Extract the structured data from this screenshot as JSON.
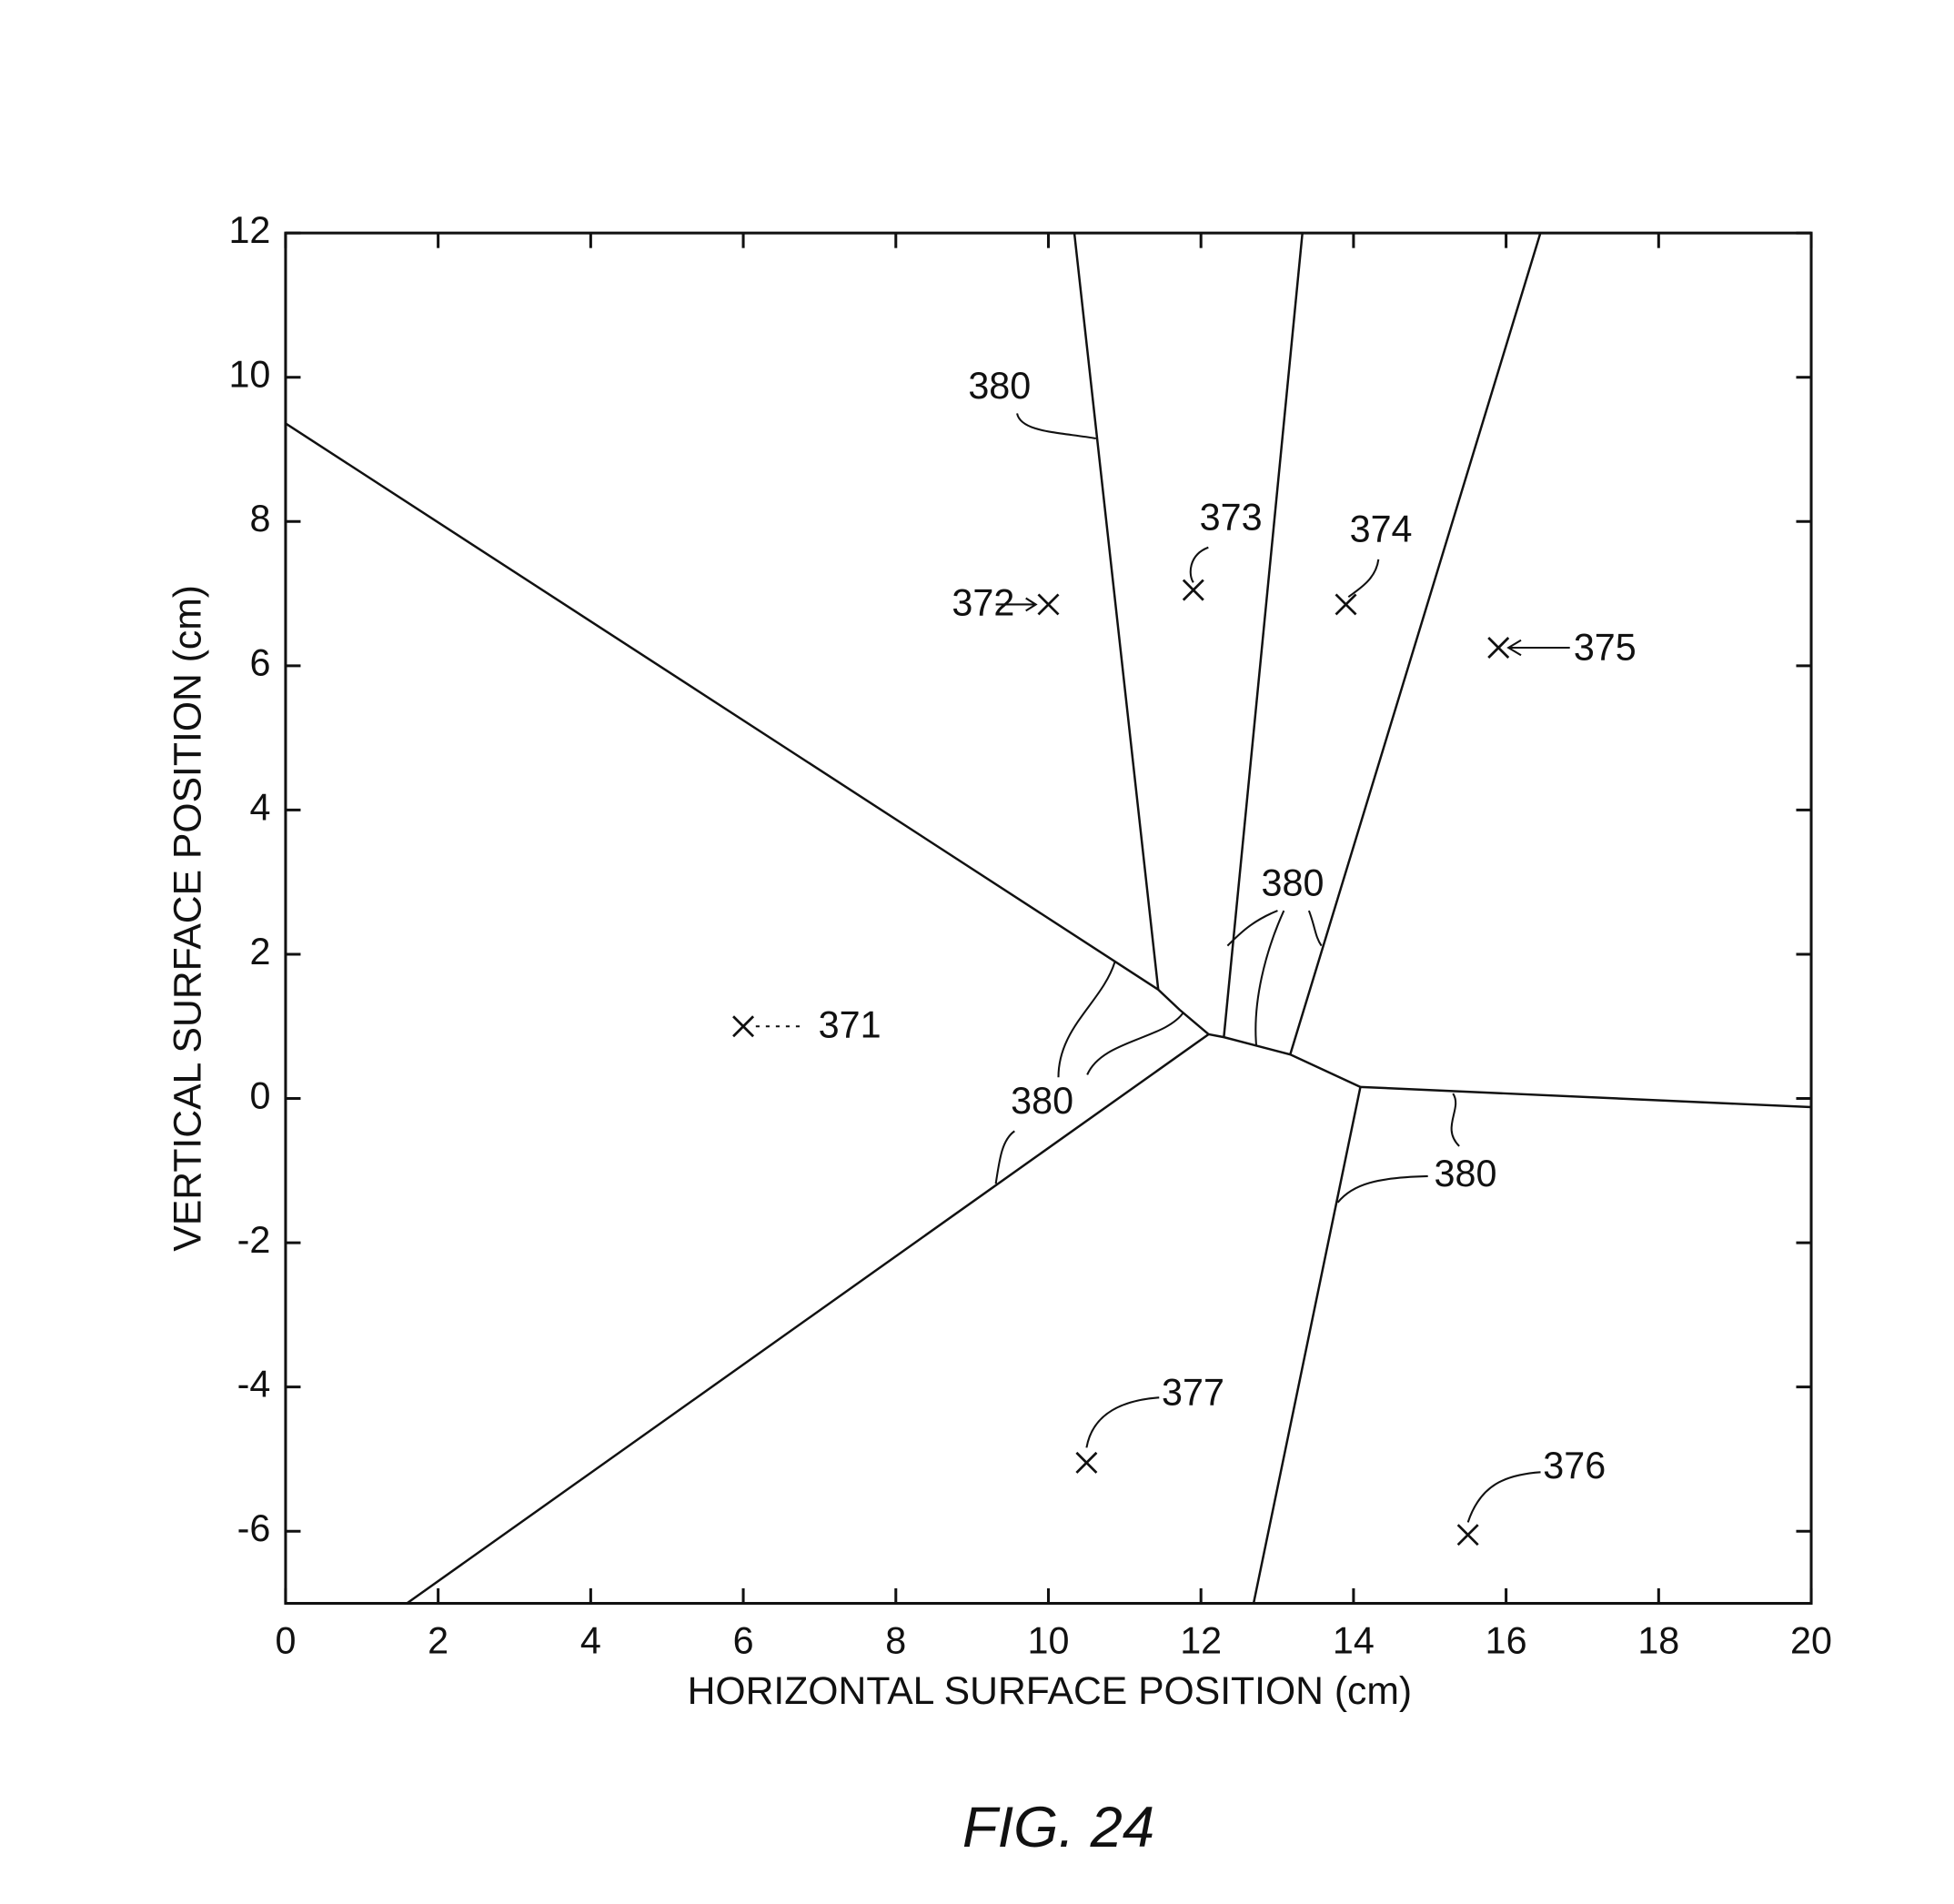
{
  "chart_data": {
    "type": "scatter",
    "title": "FIG. 24",
    "x_label": "HORIZONTAL SURFACE POSITION (cm)",
    "y_label": "VERTICAL SURFACE POSITION (cm)",
    "xlim": [
      0,
      20
    ],
    "ylim": [
      -7,
      12
    ],
    "xticks": [
      0,
      2,
      4,
      6,
      8,
      10,
      12,
      14,
      16,
      18,
      20
    ],
    "yticks": [
      -6,
      -4,
      -2,
      0,
      2,
      4,
      6,
      8,
      10,
      12
    ],
    "color": "#111111",
    "series": [
      {
        "x": [
          6,
          10,
          11.9,
          13.9,
          15.9,
          15.5,
          10.5
        ],
        "y": [
          1,
          6.85,
          7.05,
          6.85,
          6.25,
          -6.05,
          -5.05
        ],
        "labels": [
          "371",
          "372",
          "373",
          "374",
          "375",
          "376",
          "377"
        ]
      }
    ],
    "boundaries": [
      {
        "x": [
          0,
          11.44,
          11.72,
          12.1
        ],
        "y": [
          9.36,
          1.51,
          1.23,
          0.89
        ]
      },
      {
        "x": [
          10.34,
          11.44
        ],
        "y": [
          12,
          1.51
        ]
      },
      {
        "x": [
          13.33,
          12.3
        ],
        "y": [
          12,
          0.85
        ]
      },
      {
        "x": [
          16.45,
          13.17
        ],
        "y": [
          12,
          0.61
        ]
      },
      {
        "x": [
          12.1,
          12.3,
          13.17,
          14.09
        ],
        "y": [
          0.89,
          0.85,
          0.61,
          0.16
        ]
      },
      {
        "x": [
          14.09,
          20
        ],
        "y": [
          0.16,
          -0.12
        ]
      },
      {
        "x": [
          14.09,
          12.69
        ],
        "y": [
          0.16,
          -7
        ]
      },
      {
        "x": [
          12.1,
          1.59
        ],
        "y": [
          0.89,
          -7
        ]
      }
    ],
    "annotations": [
      "380",
      "380",
      "380",
      "380"
    ]
  }
}
